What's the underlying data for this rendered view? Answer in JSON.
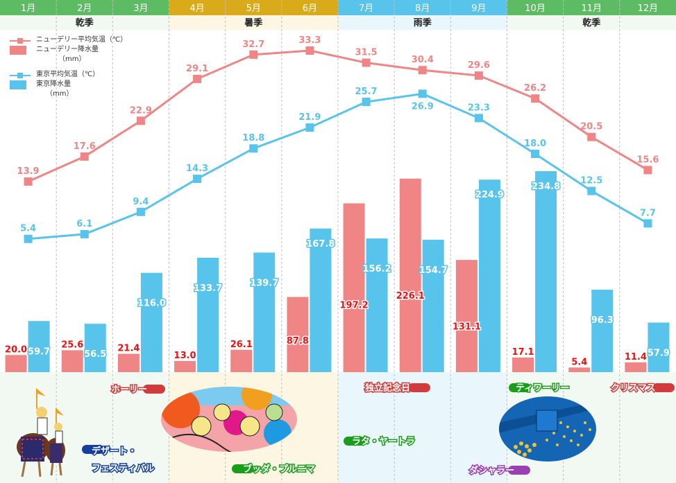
{
  "chart_data": {
    "type": "bar+line",
    "title": "",
    "categories": [
      "1月",
      "2月",
      "3月",
      "4月",
      "5月",
      "6月",
      "7月",
      "8月",
      "9月",
      "10月",
      "11月",
      "12月"
    ],
    "seasons": [
      {
        "label": "乾季",
        "months": [
          1,
          2,
          3
        ],
        "header_color": "#5dbb63",
        "band_color": "#f2f9f2"
      },
      {
        "label": "暑季",
        "months": [
          4,
          5,
          6
        ],
        "header_color": "#d9aa1a",
        "band_color": "#fdf6e3"
      },
      {
        "label": "雨季",
        "months": [
          7,
          8,
          9
        ],
        "header_color": "#58c4ec",
        "band_color": "#e9f7fd"
      },
      {
        "label": "乾季",
        "months": [
          10,
          11,
          12
        ],
        "header_color": "#5dbb63",
        "band_color": "#f2f9f2"
      }
    ],
    "series": [
      {
        "name": "ニューデリー平均気温（℃）",
        "kind": "line",
        "color": "#f08585",
        "values": [
          13.9,
          17.6,
          22.9,
          29.1,
          32.7,
          33.3,
          31.5,
          30.4,
          29.6,
          26.2,
          20.5,
          15.6
        ]
      },
      {
        "name": "東京平均気温（℃）",
        "kind": "line",
        "color": "#58c4ec",
        "values": [
          5.4,
          6.1,
          9.4,
          14.3,
          18.8,
          21.9,
          25.7,
          26.9,
          23.3,
          18.0,
          12.5,
          7.7
        ]
      },
      {
        "name": "ニューデリー降水量（mm）",
        "kind": "bar",
        "color": "#f08585",
        "label_color": "#ee1111",
        "values": [
          20.0,
          25.6,
          21.4,
          13.0,
          26.1,
          87.8,
          197.2,
          226.1,
          131.1,
          17.1,
          5.4,
          11.4
        ]
      },
      {
        "name": "東京降水量（mm）",
        "kind": "bar",
        "color": "#58c4ec",
        "label_color": "#ffffff",
        "values": [
          59.7,
          56.5,
          116.0,
          133.7,
          139.7,
          167.8,
          156.2,
          154.7,
          224.9,
          234.8,
          96.3,
          57.9
        ]
      }
    ],
    "legend": {
      "placement": "top-left",
      "entries": [
        {
          "label": "ニューデリー平均気温（℃）",
          "type": "line",
          "color": "#f08585"
        },
        {
          "label": "ニューデリー降水量",
          "sub": "（mm）",
          "type": "box",
          "color": "#f08585"
        },
        {
          "label": "東京平均気温（℃）",
          "type": "line",
          "color": "#58c4ec"
        },
        {
          "label": "東京降水量",
          "sub": "（mm）",
          "type": "box",
          "color": "#58c4ec"
        }
      ]
    },
    "grid": "vertical dashed month separators"
  },
  "events": [
    {
      "label": "ホーリー",
      "month": 3,
      "color": "#d23b3b",
      "pill": "right"
    },
    {
      "label": "デザート・",
      "label2": "フェスティバル",
      "month": 2,
      "color": "#153f9e",
      "pill": "left"
    },
    {
      "label": "ブッダ・プルニマ",
      "month": 5,
      "color": "#1a9e1a",
      "pill": "left"
    },
    {
      "label": "独立記念日",
      "month": 8,
      "color": "#d23b3b",
      "pill": "right"
    },
    {
      "label": "ラタ・ヤートラ",
      "month": 7,
      "color": "#1a9e1a",
      "pill": "left"
    },
    {
      "label": "ティワーリー",
      "month": 10,
      "color": "#1a9e1a",
      "pill": "left"
    },
    {
      "label": "クリスマス",
      "month": 12,
      "color": "#d23b3b",
      "pill": "right"
    },
    {
      "label": "ダシャラー",
      "month": 9,
      "color": "#9b3fb5",
      "pill": "right"
    }
  ],
  "illustrations": [
    {
      "name": "camel-riders-illustration"
    },
    {
      "name": "holi-crowd-illustration"
    },
    {
      "name": "diwali-lamps-illustration"
    }
  ]
}
